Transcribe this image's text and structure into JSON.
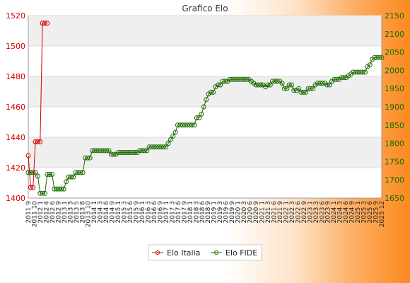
{
  "chart_data": {
    "type": "line",
    "title": "Grafico Elo",
    "xlabel": "",
    "ylabel_left": "",
    "ylabel_right": "",
    "y_left": {
      "lim": [
        1400,
        1520
      ],
      "ticks": [
        1400,
        1420,
        1440,
        1460,
        1480,
        1500,
        1520
      ],
      "color": "#d10000"
    },
    "y_right": {
      "lim": [
        1650,
        2150
      ],
      "ticks": [
        1650,
        1700,
        1750,
        1800,
        1850,
        1900,
        1950,
        2000,
        2050,
        2100,
        2150
      ],
      "color": "#1a6b00"
    },
    "grid": true,
    "legend_position": "bottom-center",
    "x_tick_labels": [
      "2011 9",
      "2011 10",
      "2012 1",
      "2012 4",
      "2012 6",
      "2012 9",
      "2013 1",
      "2013 3",
      "2013 5",
      "2013 8",
      "2013 10",
      "2014 1",
      "2014 3",
      "2014 6",
      "2014 9",
      "2015 1",
      "2015 3",
      "2015 6",
      "2015 9",
      "2016 1",
      "2016 3",
      "2016 6",
      "2016 9",
      "2017 1",
      "2017 3",
      "2017 6",
      "2017 9",
      "2018 1",
      "2018 3",
      "2018 6",
      "2018 9",
      "2019 1",
      "2019 3",
      "2019 6",
      "2019 9",
      "2020 1",
      "2020 3",
      "2020 6",
      "2020 9",
      "2021 1",
      "2021 3",
      "2021 6",
      "2021 9",
      "2022 1",
      "2022 3",
      "2022 6",
      "2022 9",
      "2023 1",
      "2023 3",
      "2023 6",
      "2023 9",
      "2024 1",
      "2024 3",
      "2024 6",
      "2024 9",
      "2025 1",
      "2025 3",
      "2025 6",
      "2025 9",
      "2025 12"
    ],
    "series": [
      {
        "name": "Elo Italia",
        "axis": "left",
        "color": "#d10000",
        "values": [
          1428,
          1407,
          1407,
          1437,
          1437,
          1437,
          1515,
          1515,
          1515
        ]
      },
      {
        "name": "Elo FIDE",
        "axis": "right",
        "color": "#1a6b00",
        "values": [
          1720,
          1720,
          1720,
          1720,
          1710,
          1663,
          1663,
          1663,
          1715,
          1715,
          1715,
          1675,
          1675,
          1675,
          1675,
          1675,
          1695,
          1708,
          1708,
          1708,
          1720,
          1720,
          1720,
          1720,
          1760,
          1760,
          1760,
          1780,
          1780,
          1780,
          1780,
          1780,
          1780,
          1780,
          1780,
          1770,
          1770,
          1770,
          1775,
          1775,
          1775,
          1775,
          1775,
          1775,
          1775,
          1775,
          1775,
          1780,
          1780,
          1780,
          1780,
          1790,
          1790,
          1790,
          1790,
          1790,
          1790,
          1790,
          1790,
          1800,
          1810,
          1820,
          1830,
          1850,
          1850,
          1850,
          1850,
          1850,
          1850,
          1850,
          1850,
          1870,
          1870,
          1880,
          1900,
          1920,
          1935,
          1940,
          1940,
          1955,
          1960,
          1960,
          1970,
          1970,
          1970,
          1975,
          1975,
          1975,
          1975,
          1975,
          1975,
          1975,
          1975,
          1975,
          1970,
          1965,
          1960,
          1960,
          1960,
          1960,
          1955,
          1960,
          1960,
          1970,
          1970,
          1970,
          1970,
          1965,
          1950,
          1950,
          1960,
          1960,
          1945,
          1945,
          1950,
          1940,
          1940,
          1940,
          1950,
          1950,
          1950,
          1960,
          1965,
          1965,
          1965,
          1965,
          1960,
          1960,
          1970,
          1975,
          1975,
          1975,
          1980,
          1980,
          1980,
          1985,
          1990,
          1995,
          1995,
          1995,
          1995,
          1995,
          1995,
          2010,
          2015,
          2030,
          2035,
          2035,
          2035,
          2035
        ]
      }
    ]
  }
}
